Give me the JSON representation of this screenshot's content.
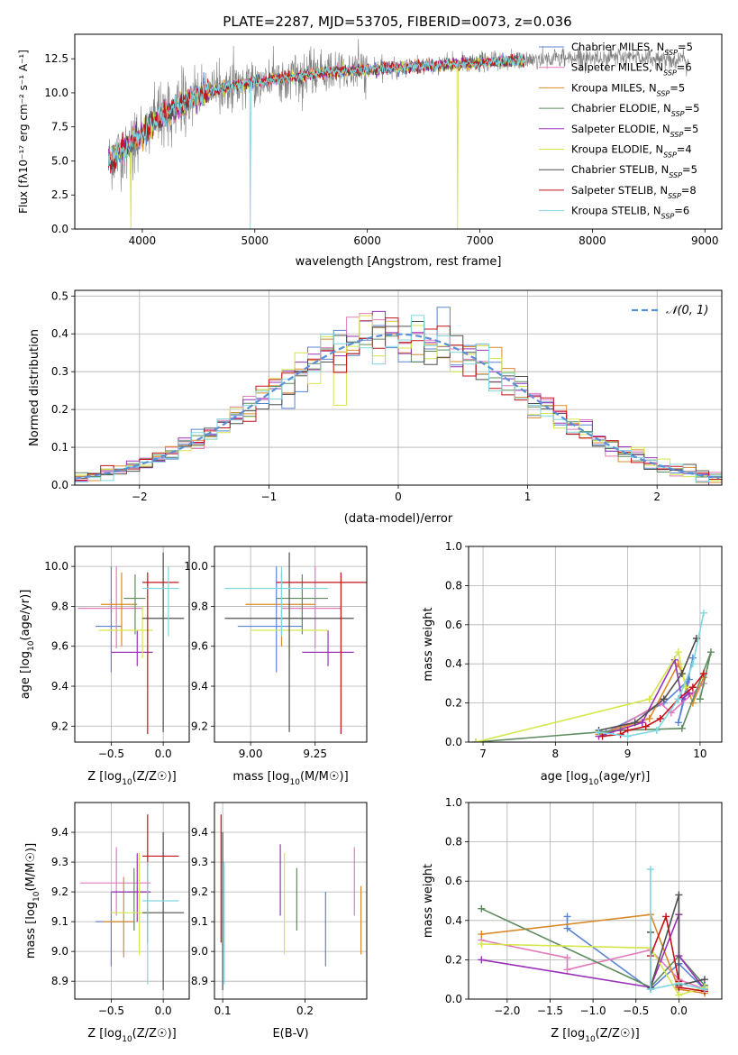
{
  "figure": {
    "title": "PLATE=2287, MJD=53705, FIBERID=0073, z=0.036"
  },
  "models": [
    {
      "name": "Chabrier MILES",
      "nssp": "5",
      "color": "#5b83d3"
    },
    {
      "name": "Salpeter MILES",
      "nssp": "6",
      "color": "#e37bbb"
    },
    {
      "name": "Kroupa MILES",
      "nssp": "5",
      "color": "#d98a2b"
    },
    {
      "name": "Chabrier ELODIE",
      "nssp": "5",
      "color": "#5e8c5e"
    },
    {
      "name": "Salpeter ELODIE",
      "nssp": "5",
      "color": "#9932b8"
    },
    {
      "name": "Kroupa ELODIE",
      "nssp": "4",
      "color": "#d4e64a"
    },
    {
      "name": "Chabrier STELIB",
      "nssp": "5",
      "color": "#4f4f4f"
    },
    {
      "name": "Salpeter STELIB",
      "nssp": "8",
      "color": "#c4121a"
    },
    {
      "name": "Kroupa STELIB",
      "nssp": "6",
      "color": "#7fd6df"
    }
  ],
  "chart_data": [
    {
      "id": "spectrum",
      "type": "line",
      "title": "PLATE=2287, MJD=53705, FIBERID=0073, z=0.036",
      "xlabel": "wavelength [Angstrom, rest frame]",
      "ylabel": "Flux [f_λ 10^-17 erg cm^-2 s^-1 A^-1]",
      "xlim": [
        3400,
        9150
      ],
      "ylim": [
        0,
        14.3
      ],
      "xticks": [
        4000,
        5000,
        6000,
        7000,
        8000,
        9000
      ],
      "yticks": [
        0.0,
        2.5,
        5.0,
        7.5,
        10.0,
        12.5
      ],
      "grid": false,
      "legend": "right",
      "data_series": {
        "name": "data",
        "color": "#808080",
        "x": [
          3700,
          3800,
          3900,
          4000,
          4100,
          4200,
          4300,
          4400,
          4500,
          4600,
          4700,
          4800,
          4900,
          5000,
          5200,
          5400,
          5600,
          5800,
          6000,
          6200,
          6400,
          6600,
          6800,
          7000,
          7200,
          7400,
          7600,
          7800,
          8000,
          8200,
          8400,
          8600,
          8800,
          8860
        ],
        "y": [
          5.0,
          5.6,
          6.3,
          7.0,
          7.8,
          8.4,
          8.9,
          9.4,
          9.8,
          10.1,
          10.3,
          10.5,
          10.6,
          10.8,
          11.0,
          11.2,
          11.5,
          11.6,
          11.7,
          11.8,
          11.9,
          12.0,
          12.1,
          12.2,
          12.3,
          12.4,
          12.5,
          12.6,
          12.6,
          12.6,
          12.6,
          12.5,
          12.4,
          12.3
        ]
      },
      "model_curve": {
        "x": [
          3700,
          3800,
          3900,
          4000,
          4100,
          4200,
          4300,
          4400,
          4500,
          4600,
          4700,
          4800,
          4900,
          5000,
          5200,
          5400,
          5600,
          5800,
          6000,
          6200,
          6400,
          6600,
          6800,
          7000,
          7200,
          7400
        ],
        "y": [
          5.0,
          5.6,
          6.3,
          7.0,
          7.8,
          8.4,
          8.9,
          9.4,
          9.8,
          10.1,
          10.3,
          10.5,
          10.6,
          10.8,
          11.0,
          11.2,
          11.5,
          11.6,
          11.7,
          11.8,
          11.9,
          12.0,
          12.1,
          12.2,
          12.3,
          12.4
        ]
      },
      "drops": [
        {
          "model": 8,
          "x": 4960
        },
        {
          "model": 5,
          "x": 6800
        },
        {
          "model": 2,
          "x": 7420
        },
        {
          "model": 5,
          "x": 3900
        }
      ]
    },
    {
      "id": "residuals",
      "type": "histogram",
      "xlabel": "(data-model)/error",
      "ylabel": "Normed distribution",
      "xlim": [
        -2.5,
        2.5
      ],
      "ylim": [
        0,
        0.515
      ],
      "xticks": [
        -2,
        -1,
        0,
        1,
        2
      ],
      "yticks": [
        0.0,
        0.1,
        0.2,
        0.3,
        0.4,
        0.5
      ],
      "grid": true,
      "bin_width": 0.1,
      "reference": {
        "name": "𝒩(0, 1)",
        "color": "#5b8fd6"
      },
      "legend": "top-right"
    },
    {
      "id": "age-vs-Z",
      "type": "errorbar",
      "xlabel": "Z [log10(Z/Z☉)]",
      "ylabel": "age  [log10(age/yr)]",
      "xlim": [
        -0.85,
        0.25
      ],
      "ylim": [
        9.12,
        10.1
      ],
      "xticks": [
        -0.5,
        0.0
      ],
      "yticks": [
        9.2,
        9.4,
        9.6,
        9.8,
        10.0
      ],
      "grid": true,
      "points": [
        {
          "model": 0,
          "x": -0.5,
          "xlo": -0.65,
          "xhi": -0.4,
          "y": 9.7,
          "ylo": 9.47,
          "yhi": 10.0
        },
        {
          "model": 1,
          "x": -0.45,
          "xlo": -0.82,
          "xhi": -0.2,
          "y": 9.79,
          "ylo": 9.59,
          "yhi": 10.0
        },
        {
          "model": 2,
          "x": -0.4,
          "xlo": -0.6,
          "xhi": -0.25,
          "y": 9.81,
          "ylo": 9.6,
          "yhi": 9.97
        },
        {
          "model": 3,
          "x": -0.27,
          "xlo": -0.38,
          "xhi": -0.17,
          "y": 9.84,
          "ylo": 9.66,
          "yhi": 9.96
        },
        {
          "model": 4,
          "x": -0.25,
          "xlo": -0.5,
          "xhi": -0.1,
          "y": 9.57,
          "ylo": 9.5,
          "yhi": 9.68
        },
        {
          "model": 5,
          "x": -0.2,
          "xlo": -0.62,
          "xhi": -0.1,
          "y": 9.68,
          "ylo": 9.54,
          "yhi": 9.8
        },
        {
          "model": 6,
          "x": 0.0,
          "xlo": -0.2,
          "xhi": 0.2,
          "y": 9.74,
          "ylo": 9.17,
          "yhi": 10.07
        },
        {
          "model": 7,
          "x": -0.15,
          "xlo": -0.2,
          "xhi": 0.15,
          "y": 9.92,
          "ylo": 9.16,
          "yhi": 9.97
        },
        {
          "model": 8,
          "x": 0.05,
          "xlo": -0.2,
          "xhi": 0.15,
          "y": 9.89,
          "ylo": 9.65,
          "yhi": 10.0
        }
      ]
    },
    {
      "id": "age-vs-mass",
      "type": "errorbar",
      "xlabel": "mass [log10(M/M☉)]",
      "ylabel": "",
      "xlim": [
        8.86,
        9.45
      ],
      "ylim": [
        9.12,
        10.1
      ],
      "xticks": [
        9.0,
        9.25
      ],
      "yticks": [
        9.2,
        9.4,
        9.6,
        9.8,
        10.0
      ],
      "grid": true,
      "points": [
        {
          "model": 0,
          "x": 9.1,
          "xlo": 8.95,
          "xhi": 9.2,
          "y": 9.7,
          "ylo": 9.47,
          "yhi": 10.0
        },
        {
          "model": 1,
          "x": 9.25,
          "xlo": 9.12,
          "xhi": 9.35,
          "y": 9.79,
          "ylo": 9.59,
          "yhi": 10.0
        },
        {
          "model": 2,
          "x": 9.12,
          "xlo": 8.98,
          "xhi": 9.25,
          "y": 9.81,
          "ylo": 9.6,
          "yhi": 9.97
        },
        {
          "model": 3,
          "x": 9.2,
          "xlo": 9.1,
          "xhi": 9.3,
          "y": 9.84,
          "ylo": 9.66,
          "yhi": 9.96
        },
        {
          "model": 4,
          "x": 9.3,
          "xlo": 9.2,
          "xhi": 9.4,
          "y": 9.57,
          "ylo": 9.5,
          "yhi": 9.68
        },
        {
          "model": 5,
          "x": 9.15,
          "xlo": 9.0,
          "xhi": 9.3,
          "y": 9.68,
          "ylo": 9.54,
          "yhi": 9.8
        },
        {
          "model": 6,
          "x": 9.15,
          "xlo": 8.9,
          "xhi": 9.4,
          "y": 9.74,
          "ylo": 9.17,
          "yhi": 10.07
        },
        {
          "model": 7,
          "x": 9.35,
          "xlo": 9.1,
          "xhi": 9.45,
          "y": 9.92,
          "ylo": 9.16,
          "yhi": 9.97
        },
        {
          "model": 8,
          "x": 9.12,
          "xlo": 8.9,
          "xhi": 9.3,
          "y": 9.89,
          "ylo": 9.65,
          "yhi": 10.0
        }
      ]
    },
    {
      "id": "weight-vs-age",
      "type": "line",
      "xlabel": "age  [log10(age/yr)]",
      "ylabel": "mass weight",
      "xlim": [
        6.8,
        10.3
      ],
      "ylim": [
        0,
        1
      ],
      "xticks": [
        7,
        8,
        9,
        10
      ],
      "yticks": [
        0.0,
        0.2,
        0.4,
        0.6,
        0.8,
        1.0
      ],
      "grid": true,
      "series": [
        {
          "model": 0,
          "x": [
            8.7,
            9.5,
            9.85,
            9.7,
            9.9
          ],
          "y": [
            0.05,
            0.2,
            0.32,
            0.1,
            0.43
          ]
        },
        {
          "model": 1,
          "x": [
            8.8,
            9.45,
            9.6,
            9.9,
            10.05
          ],
          "y": [
            0.06,
            0.2,
            0.15,
            0.25,
            0.3
          ]
        },
        {
          "model": 2,
          "x": [
            8.6,
            9.3,
            9.7,
            9.9,
            10.05
          ],
          "y": [
            0.04,
            0.12,
            0.4,
            0.2,
            0.33
          ]
        },
        {
          "model": 3,
          "x": [
            6.9,
            8.9,
            9.75,
            10.15,
            10.0
          ],
          "y": [
            0.0,
            0.06,
            0.07,
            0.46,
            0.22
          ]
        },
        {
          "model": 4,
          "x": [
            8.6,
            9.2,
            9.65,
            9.75,
            9.85
          ],
          "y": [
            0.03,
            0.1,
            0.42,
            0.22,
            0.25
          ]
        },
        {
          "model": 5,
          "x": [
            6.9,
            9.3,
            9.7,
            9.8
          ],
          "y": [
            0.0,
            0.22,
            0.46,
            0.28
          ]
        },
        {
          "model": 6,
          "x": [
            8.6,
            9.1,
            9.5,
            9.75,
            9.95
          ],
          "y": [
            0.06,
            0.1,
            0.22,
            0.35,
            0.53
          ]
        },
        {
          "model": 7,
          "x": [
            8.65,
            8.9,
            9.0,
            9.25,
            9.45,
            9.7,
            9.9,
            10.05
          ],
          "y": [
            0.03,
            0.04,
            0.06,
            0.08,
            0.12,
            0.22,
            0.28,
            0.35
          ]
        },
        {
          "model": 8,
          "x": [
            8.6,
            9.0,
            9.4,
            9.7,
            9.9,
            10.05
          ],
          "y": [
            0.05,
            0.03,
            0.06,
            0.22,
            0.4,
            0.66
          ]
        }
      ]
    },
    {
      "id": "mass-vs-Z",
      "type": "errorbar",
      "xlabel": "Z [log10(Z/Z☉)]",
      "ylabel": "mass [log10(M/M☉)]",
      "xlim": [
        -0.85,
        0.25
      ],
      "ylim": [
        8.84,
        9.5
      ],
      "xticks": [
        -0.5,
        0.0
      ],
      "yticks": [
        8.9,
        9.0,
        9.1,
        9.2,
        9.3,
        9.4
      ],
      "grid": true,
      "points": [
        {
          "model": 0,
          "x": -0.5,
          "xlo": -0.65,
          "xhi": -0.3,
          "y": 9.1,
          "ylo": 8.95,
          "yhi": 9.2
        },
        {
          "model": 1,
          "x": -0.45,
          "xlo": -0.8,
          "xhi": -0.12,
          "y": 9.23,
          "ylo": 9.12,
          "yhi": 9.35
        },
        {
          "model": 2,
          "x": -0.38,
          "xlo": -0.58,
          "xhi": -0.28,
          "y": 9.1,
          "ylo": 8.98,
          "yhi": 9.25
        },
        {
          "model": 3,
          "x": -0.28,
          "xlo": -0.48,
          "xhi": -0.12,
          "y": 9.2,
          "ylo": 9.07,
          "yhi": 9.28
        },
        {
          "model": 4,
          "x": -0.25,
          "xlo": -0.5,
          "xhi": -0.12,
          "y": 9.2,
          "ylo": 9.1,
          "yhi": 9.33
        },
        {
          "model": 5,
          "x": -0.23,
          "xlo": -0.5,
          "xhi": -0.12,
          "y": 9.13,
          "ylo": 8.99,
          "yhi": 9.33
        },
        {
          "model": 6,
          "x": 0.0,
          "xlo": -0.2,
          "xhi": 0.2,
          "y": 9.13,
          "ylo": 8.87,
          "yhi": 9.4
        },
        {
          "model": 7,
          "x": -0.15,
          "xlo": -0.2,
          "xhi": 0.15,
          "y": 9.32,
          "ylo": 9.03,
          "yhi": 9.46
        },
        {
          "model": 8,
          "x": -0.15,
          "xlo": -0.2,
          "xhi": 0.15,
          "y": 9.17,
          "ylo": 8.89,
          "yhi": 9.3
        }
      ]
    },
    {
      "id": "mass-vs-EBV",
      "type": "errorbar",
      "xlabel": "E(B-V)",
      "ylabel": "",
      "xlim": [
        0.09,
        0.275
      ],
      "ylim": [
        8.84,
        9.5
      ],
      "xticks": [
        0.1,
        0.2
      ],
      "yticks": [
        8.9,
        9.0,
        9.1,
        9.2,
        9.3,
        9.4
      ],
      "grid": true,
      "points": [
        {
          "model": 0,
          "x": 0.225,
          "ylo": 8.95,
          "yhi": 9.2
        },
        {
          "model": 1,
          "x": 0.26,
          "ylo": 9.12,
          "yhi": 9.35
        },
        {
          "model": 2,
          "x": 0.268,
          "ylo": 8.99,
          "yhi": 9.22
        },
        {
          "model": 3,
          "x": 0.19,
          "ylo": 9.07,
          "yhi": 9.28
        },
        {
          "model": 4,
          "x": 0.17,
          "ylo": 9.12,
          "yhi": 9.36
        },
        {
          "model": 5,
          "x": 0.175,
          "ylo": 8.99,
          "yhi": 9.33
        },
        {
          "model": 6,
          "x": 0.1,
          "ylo": 8.87,
          "yhi": 9.4
        },
        {
          "model": 7,
          "x": 0.098,
          "ylo": 9.03,
          "yhi": 9.46
        },
        {
          "model": 8,
          "x": 0.102,
          "ylo": 8.89,
          "yhi": 9.3
        }
      ]
    },
    {
      "id": "weight-vs-Z",
      "type": "line",
      "xlabel": "Z [log10(Z/Z☉)]",
      "ylabel": "mass weight",
      "xlim": [
        -2.45,
        0.5
      ],
      "ylim": [
        0,
        1
      ],
      "xticks": [
        -2.0,
        -1.5,
        -1.0,
        -0.5,
        0.0
      ],
      "yticks": [
        0.0,
        0.2,
        0.4,
        0.6,
        0.8,
        1.0
      ],
      "grid": true,
      "series": [
        {
          "model": 0,
          "x": [
            -1.3,
            -1.3,
            -0.33,
            0.0,
            0.3
          ],
          "y": [
            0.42,
            0.36,
            0.05,
            0.18,
            0.05
          ]
        },
        {
          "model": 1,
          "x": [
            -2.3,
            -1.3,
            -1.3,
            -0.33,
            0.0,
            0.3
          ],
          "y": [
            0.3,
            0.21,
            0.15,
            0.25,
            0.1,
            0.05
          ]
        },
        {
          "model": 2,
          "x": [
            -2.3,
            -0.33,
            0.0,
            0.3
          ],
          "y": [
            0.33,
            0.43,
            0.05,
            0.03
          ]
        },
        {
          "model": 3,
          "x": [
            -2.3,
            -0.33,
            0.0,
            0.3
          ],
          "y": [
            0.46,
            0.06,
            0.22,
            0.07
          ]
        },
        {
          "model": 4,
          "x": [
            -2.3,
            -0.33,
            0.0,
            0.0,
            0.3
          ],
          "y": [
            0.2,
            0.06,
            0.43,
            0.22,
            0.05
          ]
        },
        {
          "model": 5,
          "x": [
            -2.3,
            -0.33,
            0.0,
            0.3
          ],
          "y": [
            0.28,
            0.26,
            0.02,
            0.06
          ]
        },
        {
          "model": 6,
          "x": [
            -0.33,
            -0.33,
            0.0,
            0.0,
            0.3
          ],
          "y": [
            0.34,
            0.06,
            0.53,
            0.07,
            0.1
          ]
        },
        {
          "model": 7,
          "x": [
            -0.33,
            -0.15,
            0.0,
            0.0,
            0.3
          ],
          "y": [
            0.22,
            0.42,
            0.09,
            0.06,
            0.04
          ]
        },
        {
          "model": 8,
          "x": [
            -0.33,
            -0.33,
            0.0,
            0.3
          ],
          "y": [
            0.66,
            0.05,
            0.08,
            0.05
          ]
        }
      ]
    }
  ]
}
